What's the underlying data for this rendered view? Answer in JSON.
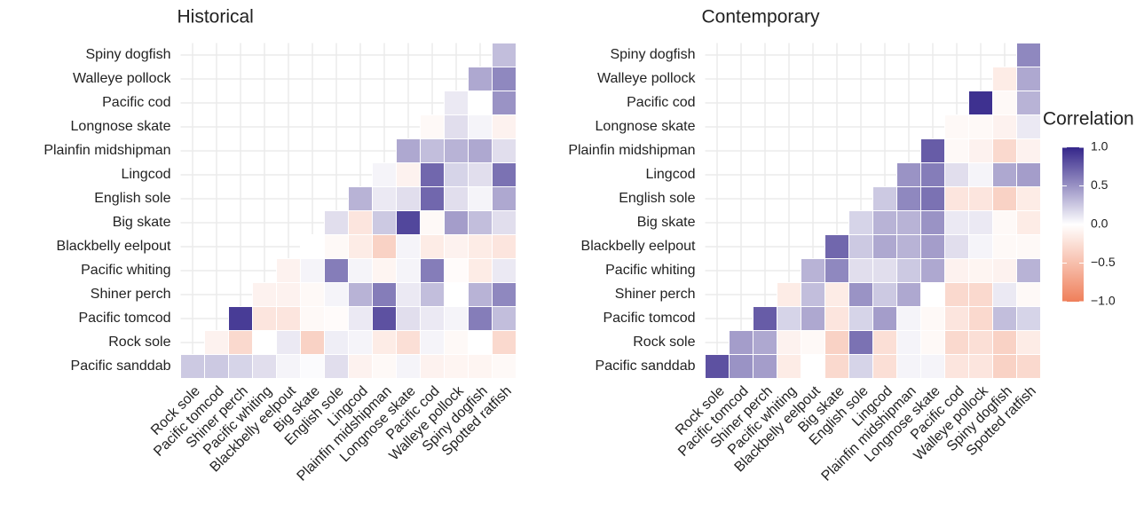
{
  "chart_data": [
    {
      "type": "heatmap",
      "title": "Historical",
      "x_categories": [
        "Rock sole",
        "Pacific tomcod",
        "Shiner perch",
        "Pacific whiting",
        "Blackbelly eelpout",
        "Big skate",
        "English sole",
        "Lingcod",
        "Plainfin midshipman",
        "Longnose skate",
        "Pacific cod",
        "Walleye pollock",
        "Spiny dogfish",
        "Spotted ratfish"
      ],
      "y_categories": [
        "Pacific sanddab",
        "Rock sole",
        "Pacific tomcod",
        "Shiner perch",
        "Pacific whiting",
        "Blackbelly eelpout",
        "Big skate",
        "English sole",
        "Lingcod",
        "Plainfin midshipman",
        "Longnose skate",
        "Pacific cod",
        "Walleye pollock",
        "Spiny dogfish"
      ],
      "values": [
        [
          0.25,
          0.25,
          0.2,
          0.15,
          0.05,
          0.02,
          0.15,
          -0.1,
          -0.05,
          0.05,
          -0.1,
          -0.08,
          -0.08,
          -0.05
        ],
        [
          null,
          -0.1,
          -0.3,
          0.0,
          0.1,
          -0.35,
          0.08,
          0.05,
          -0.15,
          -0.25,
          0.05,
          -0.05,
          0.0,
          -0.3
        ],
        [
          null,
          null,
          0.9,
          -0.2,
          -0.2,
          -0.05,
          -0.03,
          0.1,
          0.8,
          0.15,
          0.1,
          0.05,
          0.6,
          0.3
        ],
        [
          null,
          null,
          null,
          -0.1,
          -0.1,
          -0.05,
          0.05,
          0.35,
          0.6,
          0.1,
          0.3,
          0.0,
          0.35,
          0.55
        ],
        [
          null,
          null,
          null,
          null,
          -0.1,
          0.05,
          0.6,
          0.05,
          -0.08,
          0.05,
          0.6,
          -0.03,
          -0.15,
          0.1
        ],
        [
          null,
          null,
          null,
          null,
          null,
          0.0,
          -0.05,
          -0.15,
          -0.35,
          0.05,
          -0.15,
          -0.1,
          -0.15,
          -0.2
        ],
        [
          null,
          null,
          null,
          null,
          null,
          null,
          0.15,
          -0.2,
          0.25,
          0.85,
          -0.05,
          0.45,
          0.3,
          0.15
        ],
        [
          null,
          null,
          null,
          null,
          null,
          null,
          null,
          0.35,
          0.1,
          0.15,
          0.7,
          0.15,
          0.05,
          0.4
        ],
        [
          null,
          null,
          null,
          null,
          null,
          null,
          null,
          null,
          0.05,
          -0.1,
          0.7,
          0.2,
          0.15,
          0.65
        ],
        [
          null,
          null,
          null,
          null,
          null,
          null,
          null,
          null,
          null,
          0.4,
          0.3,
          0.35,
          0.4,
          0.15
        ],
        [
          null,
          null,
          null,
          null,
          null,
          null,
          null,
          null,
          null,
          null,
          -0.05,
          0.15,
          0.05,
          -0.1
        ],
        [
          null,
          null,
          null,
          null,
          null,
          null,
          null,
          null,
          null,
          null,
          null,
          0.1,
          0.0,
          0.5
        ],
        [
          null,
          null,
          null,
          null,
          null,
          null,
          null,
          null,
          null,
          null,
          null,
          null,
          0.4,
          0.55
        ],
        [
          null,
          null,
          null,
          null,
          null,
          null,
          null,
          null,
          null,
          null,
          null,
          null,
          null,
          0.3
        ]
      ]
    },
    {
      "type": "heatmap",
      "title": "Contemporary",
      "x_categories": [
        "Rock sole",
        "Pacific tomcod",
        "Shiner perch",
        "Pacific whiting",
        "Blackbelly eelpout",
        "Big skate",
        "English sole",
        "Lingcod",
        "Plainfin midshipman",
        "Longnose skate",
        "Pacific cod",
        "Walleye pollock",
        "Spiny dogfish",
        "Spotted ratfish"
      ],
      "y_categories": [
        "Pacific sanddab",
        "Rock sole",
        "Pacific tomcod",
        "Shiner perch",
        "Pacific whiting",
        "Blackbelly eelpout",
        "Big skate",
        "English sole",
        "Lingcod",
        "Plainfin midshipman",
        "Longnose skate",
        "Pacific cod",
        "Walleye pollock",
        "Spiny dogfish"
      ],
      "values": [
        [
          0.8,
          0.5,
          0.45,
          -0.15,
          0.0,
          -0.3,
          0.2,
          -0.25,
          0.05,
          0.05,
          -0.2,
          -0.2,
          -0.35,
          -0.3
        ],
        [
          null,
          0.45,
          0.4,
          -0.1,
          -0.05,
          -0.35,
          0.65,
          -0.25,
          0.05,
          -0.05,
          -0.3,
          -0.25,
          -0.35,
          -0.15
        ],
        [
          null,
          null,
          0.75,
          0.2,
          0.4,
          -0.2,
          0.2,
          0.45,
          0.05,
          -0.05,
          -0.2,
          -0.3,
          0.3,
          0.2
        ],
        [
          null,
          null,
          null,
          -0.15,
          0.3,
          -0.15,
          0.5,
          0.25,
          0.4,
          0.0,
          -0.3,
          -0.3,
          0.1,
          -0.05
        ],
        [
          null,
          null,
          null,
          null,
          0.35,
          0.55,
          0.15,
          0.15,
          0.25,
          0.4,
          -0.1,
          -0.08,
          -0.1,
          0.35
        ],
        [
          null,
          null,
          null,
          null,
          null,
          0.7,
          0.25,
          0.4,
          0.35,
          0.45,
          0.15,
          0.05,
          -0.05,
          -0.05
        ],
        [
          null,
          null,
          null,
          null,
          null,
          null,
          0.2,
          0.35,
          0.35,
          0.5,
          0.1,
          0.1,
          -0.05,
          -0.15
        ],
        [
          null,
          null,
          null,
          null,
          null,
          null,
          null,
          0.25,
          0.55,
          0.65,
          -0.2,
          -0.2,
          -0.35,
          -0.15
        ],
        [
          null,
          null,
          null,
          null,
          null,
          null,
          null,
          null,
          0.5,
          0.6,
          0.15,
          0.05,
          0.4,
          0.45
        ],
        [
          null,
          null,
          null,
          null,
          null,
          null,
          null,
          null,
          null,
          0.75,
          -0.05,
          -0.1,
          -0.3,
          -0.1
        ],
        [
          null,
          null,
          null,
          null,
          null,
          null,
          null,
          null,
          null,
          null,
          -0.05,
          -0.05,
          -0.1,
          0.1
        ],
        [
          null,
          null,
          null,
          null,
          null,
          null,
          null,
          null,
          null,
          null,
          null,
          0.95,
          -0.05,
          0.35
        ],
        [
          null,
          null,
          null,
          null,
          null,
          null,
          null,
          null,
          null,
          null,
          null,
          null,
          -0.15,
          0.4
        ],
        [
          null,
          null,
          null,
          null,
          null,
          null,
          null,
          null,
          null,
          null,
          null,
          null,
          null,
          0.55
        ]
      ]
    }
  ],
  "colorbar": {
    "title": "Correlation",
    "lim": [
      -1,
      1
    ],
    "ticks": [
      {
        "value": 1,
        "label": "1.0"
      },
      0.5,
      {
        "value": 0,
        "label": "0.0"
      },
      {
        "value": -0.5,
        "label": "−0.5"
      },
      {
        "value": -1,
        "label": "−1.0"
      }
    ],
    "low_color": "#ef7f5a",
    "mid_color": "#ffffff",
    "high_color": "#34268a"
  }
}
